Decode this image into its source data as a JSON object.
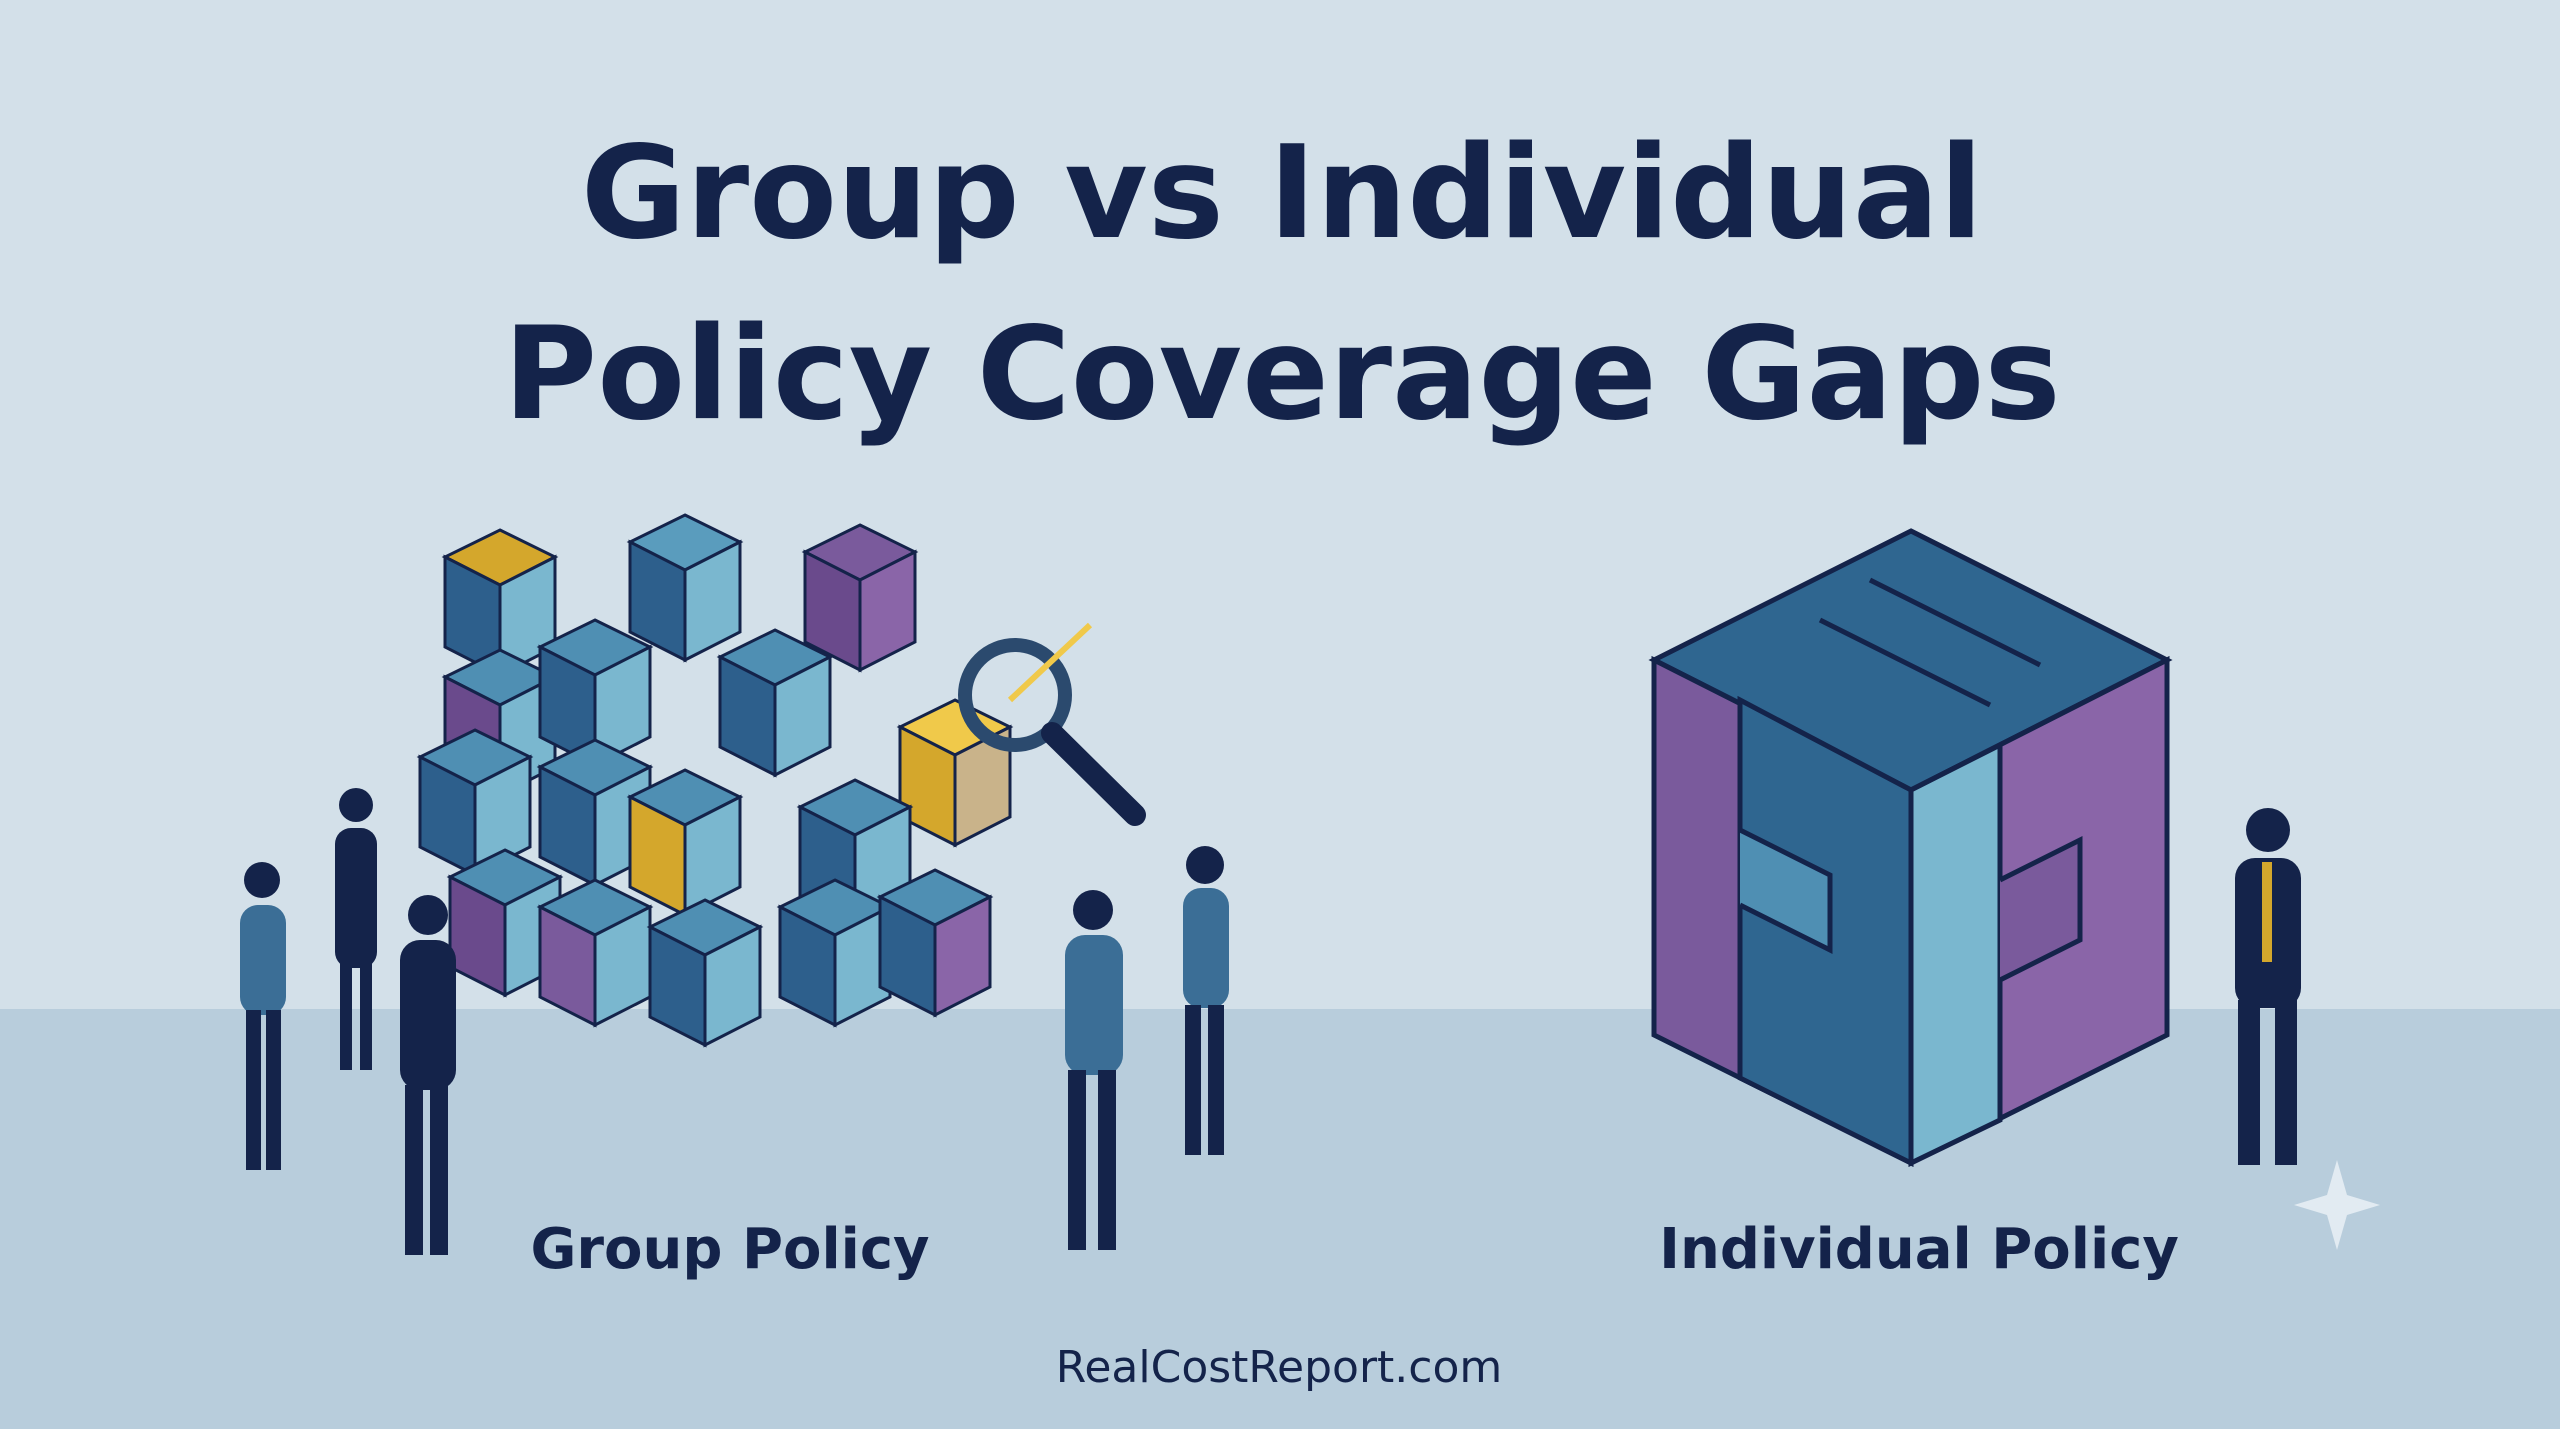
{
  "header": {
    "title_lines": [
      "Group vs Individual",
      "Policy Coverage Gaps"
    ]
  },
  "panels": [
    {
      "label": "Group Policy"
    },
    {
      "label": "Individual Policy"
    }
  ],
  "footer": {
    "source": "RealCostReport.com"
  }
}
